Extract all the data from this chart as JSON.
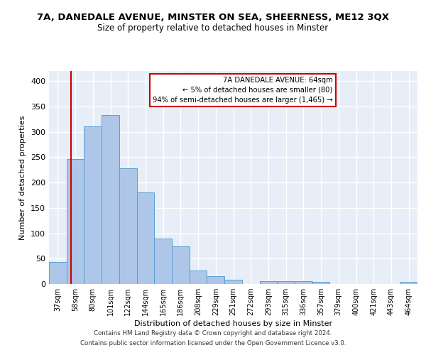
{
  "title_line1": "7A, DANEDALE AVENUE, MINSTER ON SEA, SHEERNESS, ME12 3QX",
  "title_line2": "Size of property relative to detached houses in Minster",
  "xlabel": "Distribution of detached houses by size in Minster",
  "ylabel": "Number of detached properties",
  "footer_line1": "Contains HM Land Registry data © Crown copyright and database right 2024.",
  "footer_line2": "Contains public sector information licensed under the Open Government Licence v3.0.",
  "bar_labels": [
    "37sqm",
    "58sqm",
    "80sqm",
    "101sqm",
    "122sqm",
    "144sqm",
    "165sqm",
    "186sqm",
    "208sqm",
    "229sqm",
    "251sqm",
    "272sqm",
    "293sqm",
    "315sqm",
    "336sqm",
    "357sqm",
    "379sqm",
    "400sqm",
    "421sqm",
    "443sqm",
    "464sqm"
  ],
  "bar_heights": [
    43,
    246,
    311,
    333,
    228,
    180,
    89,
    74,
    26,
    16,
    9,
    0,
    5,
    5,
    5,
    4,
    0,
    0,
    0,
    0,
    4
  ],
  "bar_color": "#aec6e8",
  "bar_edge_color": "#5a9fd4",
  "background_color": "#e8eef7",
  "grid_color": "#ffffff",
  "annotation_text": "7A DANEDALE AVENUE: 64sqm\n← 5% of detached houses are smaller (80)\n94% of semi-detached houses are larger (1,465) →",
  "annotation_box_color": "#ffffff",
  "annotation_box_edgecolor": "#cc0000",
  "vline_color": "#cc0000",
  "ylim": [
    0,
    420
  ],
  "yticks": [
    0,
    50,
    100,
    150,
    200,
    250,
    300,
    350,
    400
  ]
}
